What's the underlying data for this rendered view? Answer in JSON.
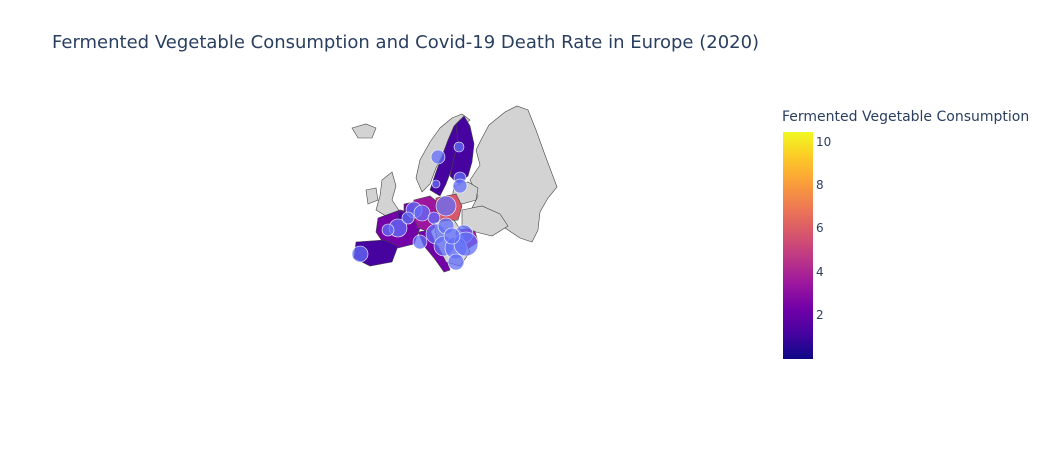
{
  "title": "Fermented Vegetable Consumption and Covid-19 Death Rate in Europe (2020)",
  "colorbar": {
    "title": "Fermented Vegetable Consumption",
    "min": 0,
    "max": 10.5,
    "ticks": [
      "2",
      "4",
      "6",
      "8",
      "10"
    ],
    "colorscale": [
      "#0d0887",
      "#46039f",
      "#7201a8",
      "#9c179e",
      "#bd3786",
      "#d8576b",
      "#ed7953",
      "#fb9f3a",
      "#fdca26",
      "#f0f921"
    ]
  },
  "map": {
    "land_color": "#d3d3d3",
    "border_color": "#444444",
    "bubble_color": "#636efa",
    "countries": [
      {
        "name": "Sweden",
        "consumption": 0.6
      },
      {
        "name": "Finland",
        "consumption": 1.0
      },
      {
        "name": "France",
        "consumption": 2.8
      },
      {
        "name": "Germany",
        "consumption": 3.2
      },
      {
        "name": "Poland",
        "consumption": 6.0
      },
      {
        "name": "Netherlands",
        "consumption": 2.0
      },
      {
        "name": "Belgium",
        "consumption": 1.6
      },
      {
        "name": "Spain",
        "consumption": 1.6
      },
      {
        "name": "Romania",
        "consumption": 4.0
      },
      {
        "name": "Italy",
        "consumption": 2.0
      }
    ]
  }
}
